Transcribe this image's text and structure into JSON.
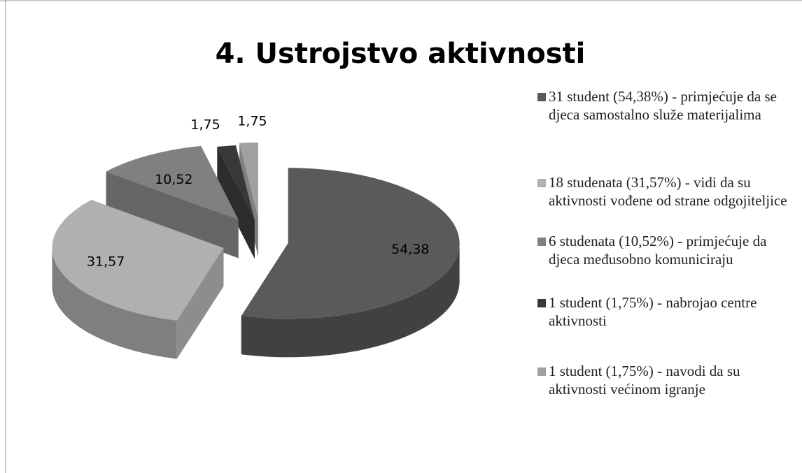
{
  "chart_data": {
    "type": "pie",
    "title": "4. Ustrojstvo aktivnosti",
    "categories": [
      "31 student (54,38%) - primjećuje da se djeca samostalno služe materijalima",
      "18 studenata (31,57%) - vidi da su aktivnosti vođene od strane odgojiteljice",
      "6 studenata (10,52%) - primjećuje da djeca međusobno komuniciraju",
      "1 student (1,75%) - nabrojao centre aktivnosti",
      "1 student (1,75%) - navodi da su aktivnosti većinom igranje"
    ],
    "values": [
      54.38,
      31.57,
      10.52,
      1.75,
      1.75
    ],
    "value_labels": [
      "54,38",
      "31,57",
      "10,52",
      "1,75",
      "1,75"
    ],
    "colors": [
      "#5a5a5a",
      "#b0b0b0",
      "#808080",
      "#383838",
      "#a0a0a0"
    ]
  }
}
